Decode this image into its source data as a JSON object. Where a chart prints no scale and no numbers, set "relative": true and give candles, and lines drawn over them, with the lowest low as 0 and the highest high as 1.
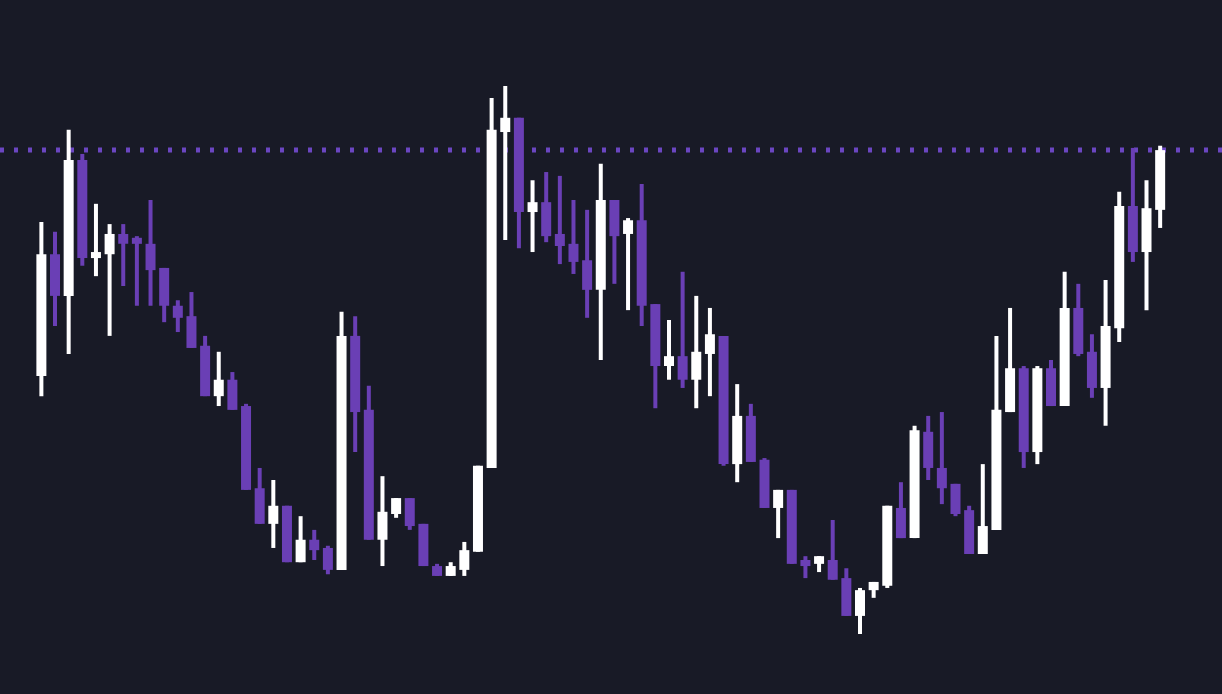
{
  "chart_data": {
    "type": "candlestick",
    "relative": true,
    "categories": [
      null,
      null,
      null,
      null,
      null,
      null,
      null,
      null,
      null,
      null,
      null,
      null,
      null,
      null,
      null,
      null,
      null,
      null,
      null,
      null,
      null,
      null,
      null,
      null,
      null,
      null,
      null,
      null,
      null,
      null,
      null,
      null,
      null,
      null,
      null,
      null,
      null,
      null,
      null,
      null,
      null,
      null,
      null,
      null,
      null,
      null,
      null,
      null,
      null,
      null,
      null,
      null,
      null,
      null,
      null,
      null,
      null,
      null,
      null,
      null,
      null,
      null,
      null,
      null,
      null,
      null,
      null,
      null,
      null,
      null,
      null,
      null,
      null,
      null,
      null,
      null,
      null,
      null,
      null,
      null,
      null,
      null,
      null
    ],
    "ohlc": [
      [
        0.471,
        0.752,
        0.434,
        0.693
      ],
      [
        0.693,
        0.734,
        0.562,
        0.617
      ],
      [
        0.617,
        0.92,
        0.511,
        0.865
      ],
      [
        0.865,
        0.876,
        0.672,
        0.686
      ],
      [
        0.686,
        0.785,
        0.653,
        0.697
      ],
      [
        0.693,
        0.748,
        0.544,
        0.73
      ],
      [
        0.73,
        0.748,
        0.635,
        0.712
      ],
      [
        0.723,
        0.726,
        0.599,
        0.712
      ],
      [
        0.712,
        0.792,
        0.599,
        0.664
      ],
      [
        0.668,
        0.668,
        0.569,
        0.599
      ],
      [
        0.599,
        0.609,
        0.551,
        0.577
      ],
      [
        0.58,
        0.624,
        0.522,
        0.522
      ],
      [
        0.526,
        0.544,
        0.434,
        0.434
      ],
      [
        0.434,
        0.515,
        0.416,
        0.464
      ],
      [
        0.464,
        0.478,
        0.409,
        0.409
      ],
      [
        0.416,
        0.42,
        0.263,
        0.263
      ],
      [
        0.266,
        0.303,
        0.201,
        0.201
      ],
      [
        0.201,
        0.281,
        0.157,
        0.234
      ],
      [
        0.234,
        0.234,
        0.131,
        0.131
      ],
      [
        0.131,
        0.215,
        0.131,
        0.172
      ],
      [
        0.172,
        0.19,
        0.135,
        0.153
      ],
      [
        0.157,
        0.161,
        0.109,
        0.117
      ],
      [
        0.117,
        0.588,
        0.117,
        0.544
      ],
      [
        0.544,
        0.58,
        0.332,
        0.405
      ],
      [
        0.409,
        0.453,
        0.172,
        0.172
      ],
      [
        0.172,
        0.288,
        0.124,
        0.223
      ],
      [
        0.219,
        0.248,
        0.212,
        0.248
      ],
      [
        0.248,
        0.248,
        0.19,
        0.197
      ],
      [
        0.201,
        0.201,
        0.124,
        0.124
      ],
      [
        0.124,
        0.128,
        0.106,
        0.106
      ],
      [
        0.106,
        0.131,
        0.106,
        0.124
      ],
      [
        0.117,
        0.168,
        0.106,
        0.153
      ],
      [
        0.15,
        0.307,
        0.15,
        0.307
      ],
      [
        0.303,
        0.978,
        0.303,
        0.92
      ],
      [
        0.916,
        1.0,
        0.719,
        0.942
      ],
      [
        0.942,
        0.942,
        0.704,
        0.77
      ],
      [
        0.77,
        0.828,
        0.697,
        0.788
      ],
      [
        0.788,
        0.843,
        0.715,
        0.726
      ],
      [
        0.73,
        0.836,
        0.675,
        0.708
      ],
      [
        0.712,
        0.792,
        0.657,
        0.679
      ],
      [
        0.682,
        0.774,
        0.577,
        0.628
      ],
      [
        0.628,
        0.858,
        0.5,
        0.792
      ],
      [
        0.792,
        0.792,
        0.639,
        0.726
      ],
      [
        0.73,
        0.759,
        0.591,
        0.755
      ],
      [
        0.755,
        0.821,
        0.562,
        0.599
      ],
      [
        0.602,
        0.602,
        0.412,
        0.489
      ],
      [
        0.489,
        0.573,
        0.464,
        0.507
      ],
      [
        0.507,
        0.661,
        0.449,
        0.464
      ],
      [
        0.464,
        0.617,
        0.412,
        0.515
      ],
      [
        0.511,
        0.595,
        0.434,
        0.547
      ],
      [
        0.544,
        0.544,
        0.307,
        0.31
      ],
      [
        0.31,
        0.456,
        0.277,
        0.398
      ],
      [
        0.398,
        0.42,
        0.314,
        0.314
      ],
      [
        0.318,
        0.321,
        0.23,
        0.23
      ],
      [
        0.23,
        0.263,
        0.175,
        0.263
      ],
      [
        0.263,
        0.263,
        0.128,
        0.128
      ],
      [
        0.135,
        0.142,
        0.102,
        0.124
      ],
      [
        0.128,
        0.142,
        0.113,
        0.142
      ],
      [
        0.135,
        0.208,
        0.099,
        0.099
      ],
      [
        0.102,
        0.12,
        0.033,
        0.033
      ],
      [
        0.033,
        0.084,
        0.0,
        0.08
      ],
      [
        0.08,
        0.095,
        0.066,
        0.095
      ],
      [
        0.088,
        0.234,
        0.084,
        0.234
      ],
      [
        0.23,
        0.277,
        0.175,
        0.175
      ],
      [
        0.175,
        0.38,
        0.175,
        0.372
      ],
      [
        0.369,
        0.398,
        0.281,
        0.303
      ],
      [
        0.303,
        0.405,
        0.237,
        0.266
      ],
      [
        0.274,
        0.274,
        0.215,
        0.219
      ],
      [
        0.226,
        0.234,
        0.146,
        0.146
      ],
      [
        0.146,
        0.31,
        0.146,
        0.197
      ],
      [
        0.19,
        0.544,
        0.19,
        0.409
      ],
      [
        0.405,
        0.595,
        0.405,
        0.485
      ],
      [
        0.485,
        0.489,
        0.303,
        0.332
      ],
      [
        0.332,
        0.489,
        0.31,
        0.485
      ],
      [
        0.485,
        0.5,
        0.416,
        0.416
      ],
      [
        0.416,
        0.661,
        0.416,
        0.595
      ],
      [
        0.595,
        0.639,
        0.507,
        0.511
      ],
      [
        0.515,
        0.547,
        0.431,
        0.449
      ],
      [
        0.449,
        0.646,
        0.38,
        0.562
      ],
      [
        0.558,
        0.807,
        0.533,
        0.781
      ],
      [
        0.781,
        0.887,
        0.679,
        0.697
      ],
      [
        0.697,
        0.828,
        0.591,
        0.777
      ],
      [
        0.774,
        0.891,
        0.741,
        0.883
      ]
    ],
    "colors": [
      "#ffffff",
      "#6a3fb5",
      "#ffffff",
      "#6a3fb5",
      "#ffffff",
      "#ffffff",
      "#6a3fb5",
      "#6a3fb5",
      "#6a3fb5",
      "#6a3fb5",
      "#6a3fb5",
      "#6a3fb5",
      "#6a3fb5",
      "#ffffff",
      "#6a3fb5",
      "#6a3fb5",
      "#6a3fb5",
      "#ffffff",
      "#6a3fb5",
      "#ffffff",
      "#6a3fb5",
      "#6a3fb5",
      "#ffffff",
      "#6a3fb5",
      "#6a3fb5",
      "#ffffff",
      "#ffffff",
      "#6a3fb5",
      "#6a3fb5",
      "#6a3fb5",
      "#ffffff",
      "#ffffff",
      "#ffffff",
      "#ffffff",
      "#ffffff",
      "#6a3fb5",
      "#ffffff",
      "#6a3fb5",
      "#6a3fb5",
      "#6a3fb5",
      "#6a3fb5",
      "#ffffff",
      "#6a3fb5",
      "#ffffff",
      "#6a3fb5",
      "#6a3fb5",
      "#ffffff",
      "#6a3fb5",
      "#ffffff",
      "#ffffff",
      "#6a3fb5",
      "#ffffff",
      "#6a3fb5",
      "#6a3fb5",
      "#ffffff",
      "#6a3fb5",
      "#6a3fb5",
      "#ffffff",
      "#6a3fb5",
      "#6a3fb5",
      "#ffffff",
      "#ffffff",
      "#ffffff",
      "#6a3fb5",
      "#ffffff",
      "#6a3fb5",
      "#6a3fb5",
      "#6a3fb5",
      "#6a3fb5",
      "#ffffff",
      "#ffffff",
      "#ffffff",
      "#6a3fb5",
      "#ffffff",
      "#6a3fb5",
      "#ffffff",
      "#6a3fb5",
      "#6a3fb5",
      "#ffffff",
      "#ffffff",
      "#6a3fb5",
      "#ffffff",
      "#ffffff"
    ],
    "ref_lines": [
      {
        "axis": "y",
        "value": 0.883,
        "color": "#6b46c1",
        "line_style": "dotted"
      }
    ]
  }
}
